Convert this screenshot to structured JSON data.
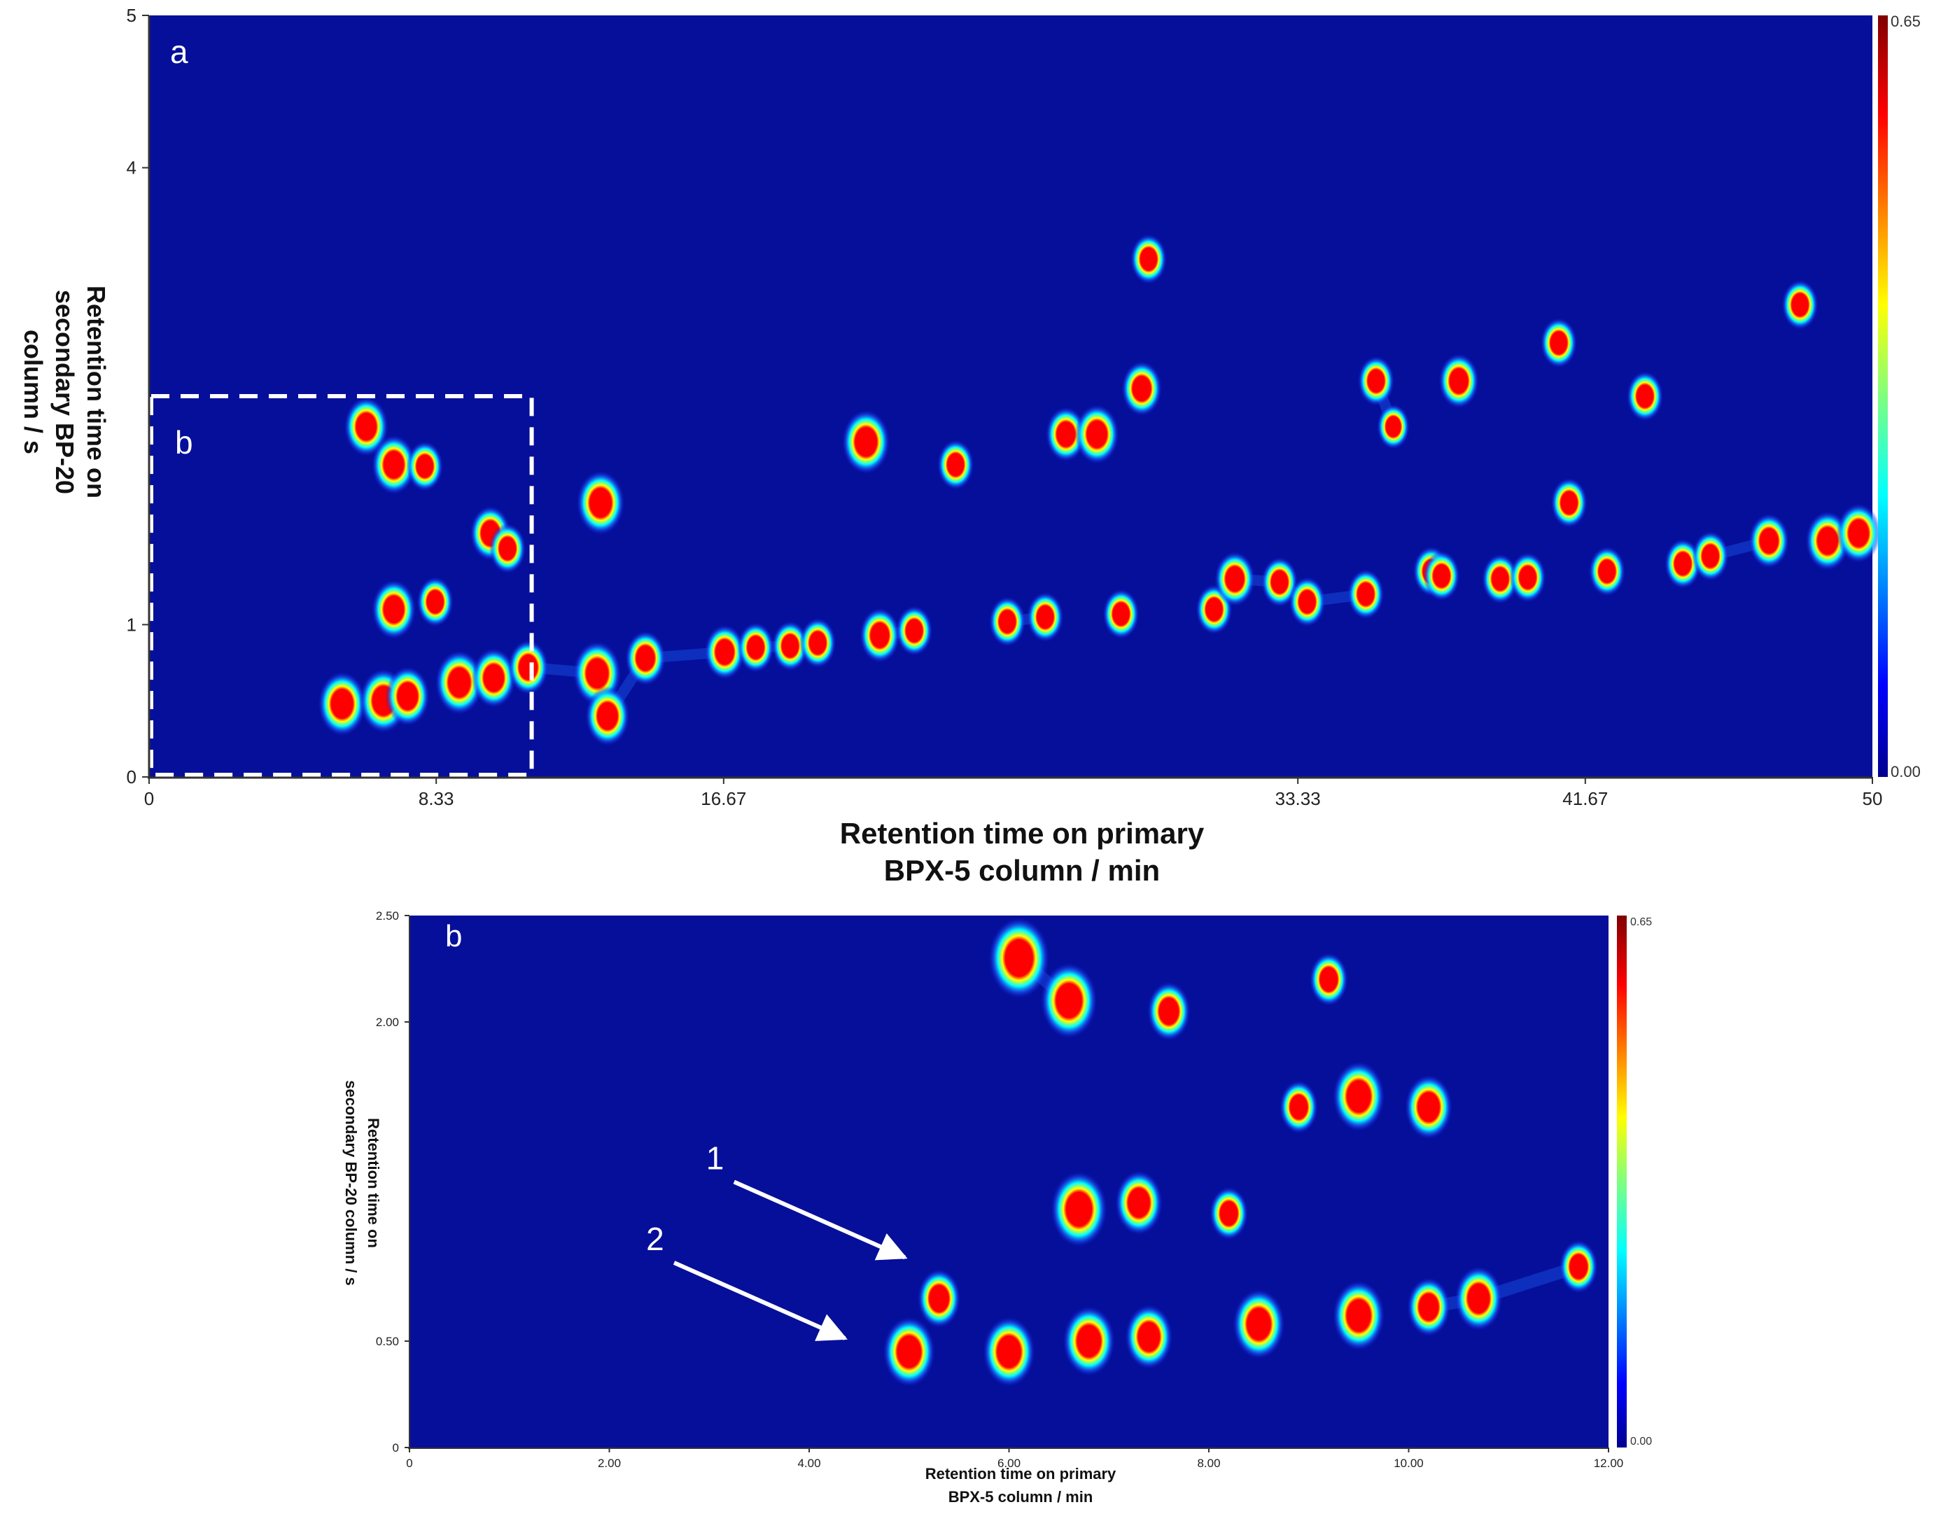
{
  "chart_data": [
    {
      "type": "heatmap",
      "panel_label": "a",
      "inset_label": "b",
      "xlabel_lines": [
        "Retention time on primary",
        "BPX-5 column / min"
      ],
      "ylabel_lines": [
        "Retention time on",
        "secondary BP-20",
        "column / s"
      ],
      "xlim": [
        0,
        50
      ],
      "ylim": [
        0,
        5
      ],
      "x_ticks": [
        {
          "value": 0,
          "label": "0"
        },
        {
          "value": 8.33,
          "label": "8.33"
        },
        {
          "value": 16.67,
          "label": "16.67"
        },
        {
          "value": 33.33,
          "label": "33.33"
        },
        {
          "value": 41.67,
          "label": "41.67"
        },
        {
          "value": 50,
          "label": "50"
        }
      ],
      "y_ticks": [
        {
          "value": 0,
          "label": "0"
        },
        {
          "value": 1,
          "label": "1"
        },
        {
          "value": 4,
          "label": "4"
        },
        {
          "value": 5,
          "label": "5"
        }
      ],
      "colorbar": {
        "min_label": "0.00",
        "max_label": "0.65",
        "min": 0.0,
        "max": 0.65
      },
      "inset_region": {
        "x": [
          0,
          11.1
        ],
        "y": [
          0,
          2.5
        ]
      },
      "peaks": [
        [
          6.3,
          2.3,
          0.6
        ],
        [
          7.1,
          2.05,
          0.6
        ],
        [
          8.0,
          2.04,
          0.4
        ],
        [
          9.9,
          1.6,
          0.5
        ],
        [
          10.4,
          1.5,
          0.4
        ],
        [
          7.1,
          1.1,
          0.6
        ],
        [
          8.3,
          1.15,
          0.4
        ],
        [
          5.6,
          0.48,
          0.7
        ],
        [
          6.8,
          0.5,
          0.7
        ],
        [
          7.5,
          0.53,
          0.6
        ],
        [
          9.0,
          0.62,
          0.7
        ],
        [
          10.0,
          0.65,
          0.6
        ],
        [
          11.0,
          0.72,
          0.5
        ],
        [
          13.1,
          1.8,
          0.7
        ],
        [
          13.0,
          0.68,
          0.7
        ],
        [
          13.3,
          0.4,
          0.6
        ],
        [
          14.4,
          0.78,
          0.5
        ],
        [
          16.7,
          0.82,
          0.5
        ],
        [
          17.6,
          0.85,
          0.4
        ],
        [
          18.6,
          0.86,
          0.4
        ],
        [
          19.4,
          0.88,
          0.4
        ],
        [
          20.8,
          2.2,
          0.7
        ],
        [
          21.2,
          0.93,
          0.5
        ],
        [
          22.2,
          0.96,
          0.4
        ],
        [
          23.4,
          2.05,
          0.4
        ],
        [
          24.9,
          1.02,
          0.4
        ],
        [
          26.6,
          2.25,
          0.5
        ],
        [
          27.5,
          2.25,
          0.6
        ],
        [
          28.2,
          1.07,
          0.4
        ],
        [
          28.8,
          2.55,
          0.5
        ],
        [
          29.0,
          3.4,
          0.4
        ],
        [
          30.9,
          1.1,
          0.4
        ],
        [
          31.5,
          1.3,
          0.5
        ],
        [
          32.8,
          1.28,
          0.4
        ],
        [
          33.6,
          1.15,
          0.4
        ],
        [
          35.3,
          1.2,
          0.4
        ],
        [
          35.6,
          2.6,
          0.4
        ],
        [
          36.1,
          2.3,
          0.3
        ],
        [
          37.2,
          1.35,
          0.4
        ],
        [
          38.0,
          2.6,
          0.5
        ],
        [
          39.2,
          1.3,
          0.4
        ],
        [
          40.9,
          2.85,
          0.4
        ],
        [
          41.2,
          1.8,
          0.4
        ],
        [
          42.3,
          1.35,
          0.4
        ],
        [
          43.4,
          2.5,
          0.4
        ],
        [
          44.5,
          1.4,
          0.4
        ],
        [
          45.3,
          1.45,
          0.4
        ],
        [
          47.0,
          1.55,
          0.5
        ],
        [
          47.9,
          3.1,
          0.4
        ],
        [
          48.7,
          1.55,
          0.6
        ],
        [
          49.6,
          1.6,
          0.6
        ],
        [
          26.0,
          1.05,
          0.4
        ],
        [
          37.5,
          1.32,
          0.4
        ],
        [
          40.0,
          1.31,
          0.4
        ]
      ]
    },
    {
      "type": "heatmap",
      "panel_label": "b",
      "xlabel_lines": [
        "Retention time on primary",
        "BPX-5 column  / min"
      ],
      "ylabel_lines": [
        "Retention time on",
        "secondary BP-20 column / s"
      ],
      "xlim": [
        0,
        12
      ],
      "ylim": [
        0,
        2.5
      ],
      "x_ticks": [
        {
          "value": 0,
          "label": "0"
        },
        {
          "value": 2,
          "label": "2.00"
        },
        {
          "value": 4,
          "label": "4.00"
        },
        {
          "value": 6,
          "label": "6.00"
        },
        {
          "value": 8,
          "label": "8.00"
        },
        {
          "value": 10,
          "label": "10.00"
        },
        {
          "value": 12,
          "label": "12.00"
        }
      ],
      "y_ticks": [
        {
          "value": 0,
          "label": "0"
        },
        {
          "value": 0.5,
          "label": "0.50"
        },
        {
          "value": 2.0,
          "label": "2.00"
        },
        {
          "value": 2.5,
          "label": "2.50"
        }
      ],
      "colorbar": {
        "min_label": "0.00",
        "max_label": "0.65",
        "min": 0.0,
        "max": 0.65
      },
      "annotations": [
        {
          "text": "1",
          "x": 5.0,
          "y": 0.88
        },
        {
          "text": "2",
          "x": 4.4,
          "y": 0.5
        }
      ],
      "peaks": [
        [
          6.1,
          2.3,
          0.8
        ],
        [
          6.6,
          2.1,
          0.7
        ],
        [
          7.6,
          2.05,
          0.4
        ],
        [
          6.7,
          1.12,
          0.7
        ],
        [
          7.3,
          1.15,
          0.5
        ],
        [
          8.2,
          1.1,
          0.3
        ],
        [
          9.5,
          1.65,
          0.6
        ],
        [
          10.2,
          1.6,
          0.5
        ],
        [
          8.9,
          1.6,
          0.3
        ],
        [
          5.3,
          0.7,
          0.4
        ],
        [
          5.0,
          0.45,
          0.6
        ],
        [
          6.0,
          0.45,
          0.6
        ],
        [
          6.8,
          0.5,
          0.6
        ],
        [
          7.4,
          0.52,
          0.5
        ],
        [
          8.5,
          0.58,
          0.6
        ],
        [
          9.5,
          0.62,
          0.6
        ],
        [
          10.2,
          0.66,
          0.4
        ],
        [
          10.7,
          0.7,
          0.5
        ],
        [
          9.2,
          2.2,
          0.3
        ],
        [
          11.7,
          0.85,
          0.3
        ]
      ]
    }
  ]
}
